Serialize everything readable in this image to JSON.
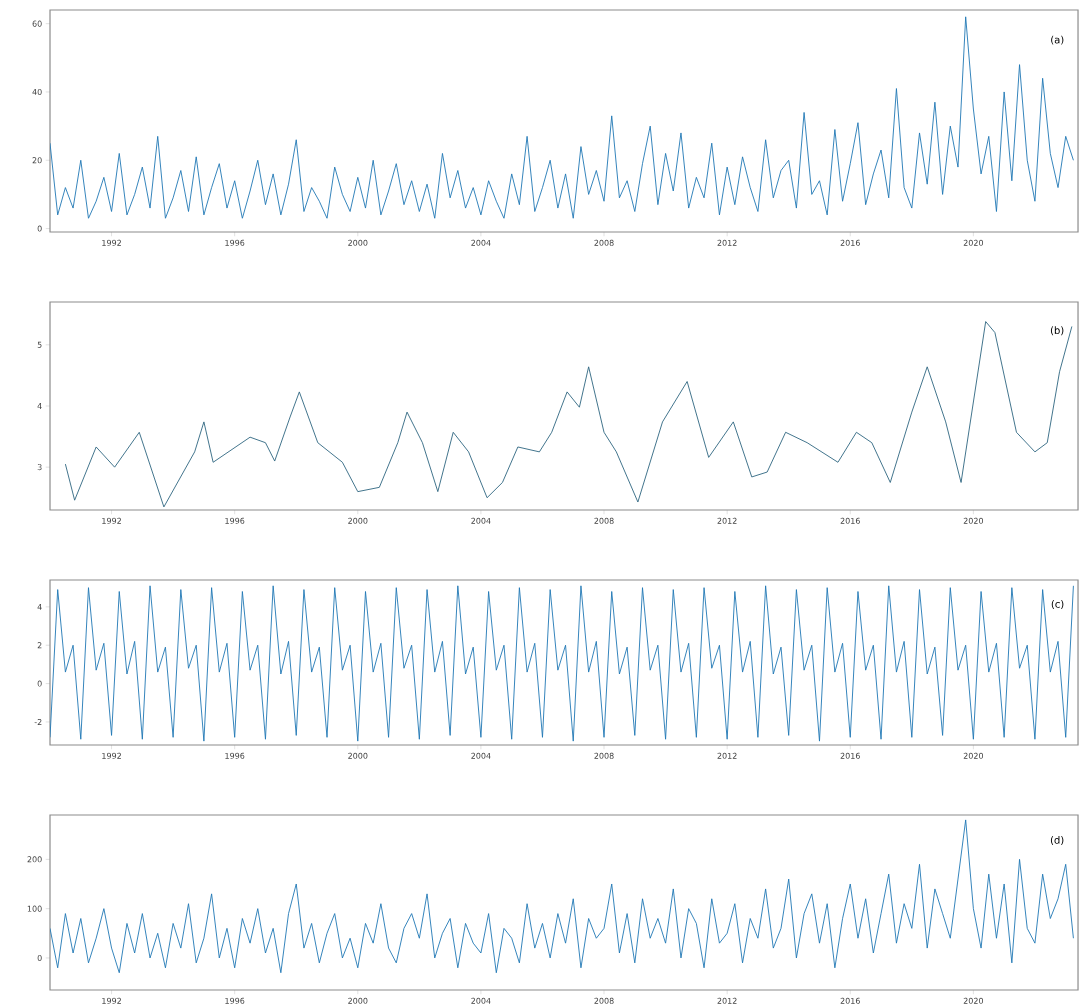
{
  "chart_data": [
    {
      "type": "line",
      "color": "#1f77b4",
      "marker": "none",
      "annotations": [
        "(a)"
      ],
      "xlim": [
        1990,
        2023.4
      ],
      "ylim": [
        -1,
        64
      ],
      "xticks": [
        1992,
        1996,
        2000,
        2004,
        2008,
        2012,
        2016,
        2020
      ],
      "yticks": [
        0,
        20,
        40,
        60
      ],
      "x": [
        1990,
        1990.25,
        1990.5,
        1990.75,
        1991,
        1991.25,
        1991.5,
        1991.75,
        1992,
        1992.25,
        1992.5,
        1992.75,
        1993,
        1993.25,
        1993.5,
        1993.75,
        1994,
        1994.25,
        1994.5,
        1994.75,
        1995,
        1995.25,
        1995.5,
        1995.75,
        1996,
        1996.25,
        1996.5,
        1996.75,
        1997,
        1997.25,
        1997.5,
        1997.75,
        1998,
        1998.25,
        1998.5,
        1998.75,
        1999,
        1999.25,
        1999.5,
        1999.75,
        2000,
        2000.25,
        2000.5,
        2000.75,
        2001,
        2001.25,
        2001.5,
        2001.75,
        2002,
        2002.25,
        2002.5,
        2002.75,
        2003,
        2003.25,
        2003.5,
        2003.75,
        2004,
        2004.25,
        2004.5,
        2004.75,
        2005,
        2005.25,
        2005.5,
        2005.75,
        2006,
        2006.25,
        2006.5,
        2006.75,
        2007,
        2007.25,
        2007.5,
        2007.75,
        2008,
        2008.25,
        2008.5,
        2008.75,
        2009,
        2009.25,
        2009.5,
        2009.75,
        2010,
        2010.25,
        2010.5,
        2010.75,
        2011,
        2011.25,
        2011.5,
        2011.75,
        2012,
        2012.25,
        2012.5,
        2012.75,
        2013,
        2013.25,
        2013.5,
        2013.75,
        2014,
        2014.25,
        2014.5,
        2014.75,
        2015,
        2015.25,
        2015.5,
        2015.75,
        2016,
        2016.25,
        2016.5,
        2016.75,
        2017,
        2017.25,
        2017.5,
        2017.75,
        2018,
        2018.25,
        2018.5,
        2018.75,
        2019,
        2019.25,
        2019.5,
        2019.75,
        2020,
        2020.25,
        2020.5,
        2020.75,
        2021,
        2021.25,
        2021.5,
        2021.75,
        2022,
        2022.25,
        2022.5,
        2022.75,
        2023,
        2023.25
      ],
      "values": [
        25,
        4,
        12,
        6,
        20,
        3,
        8,
        15,
        5,
        22,
        4,
        10,
        18,
        6,
        27,
        3,
        9,
        17,
        5,
        21,
        4,
        12,
        19,
        6,
        14,
        3,
        11,
        20,
        7,
        16,
        4,
        13,
        26,
        5,
        12,
        8,
        3,
        18,
        10,
        5,
        15,
        6,
        20,
        4,
        11,
        19,
        7,
        14,
        5,
        13,
        3,
        22,
        9,
        17,
        6,
        12,
        4,
        14,
        8,
        3,
        16,
        7,
        27,
        5,
        12,
        20,
        6,
        16,
        3,
        24,
        10,
        17,
        8,
        33,
        9,
        14,
        5,
        19,
        30,
        7,
        22,
        11,
        28,
        6,
        15,
        9,
        25,
        4,
        18,
        7,
        21,
        12,
        5,
        26,
        9,
        17,
        20,
        6,
        34,
        10,
        14,
        4,
        29,
        8,
        19,
        31,
        7,
        16,
        23,
        9,
        41,
        12,
        6,
        28,
        13,
        37,
        10,
        30,
        18,
        62,
        35,
        16,
        27,
        5,
        40,
        14,
        48,
        20,
        8,
        44,
        22,
        12,
        27,
        20
      ]
    },
    {
      "type": "line",
      "color": "#2e6580",
      "marker": "none",
      "annotations": [
        "(b)"
      ],
      "xlim": [
        1990,
        2023.4
      ],
      "ylim": [
        2.3,
        5.7
      ],
      "xticks": [
        1992,
        1996,
        2000,
        2004,
        2008,
        2012,
        2016,
        2020
      ],
      "yticks": [
        3,
        4,
        5
      ],
      "x": [
        1990.5,
        1990.8,
        1991.5,
        1992.1,
        1992.9,
        1993.7,
        1994.7,
        1995,
        1995.3,
        1996.5,
        1997,
        1997.3,
        1997.8,
        1998.1,
        1998.7,
        1999.5,
        2000,
        2000.7,
        2001.3,
        2001.6,
        2002.1,
        2002.6,
        2003.1,
        2003.6,
        2004.2,
        2004.7,
        2005.2,
        2005.9,
        2006.3,
        2006.8,
        2007.2,
        2007.5,
        2008,
        2008.4,
        2009.1,
        2009.9,
        2010.7,
        2011.4,
        2012.2,
        2012.8,
        2013.3,
        2013.9,
        2014.6,
        2015.6,
        2016.2,
        2016.7,
        2017.3,
        2018,
        2018.5,
        2019.1,
        2019.6,
        2020.4,
        2020.7,
        2021.4,
        2022,
        2022.4,
        2022.8,
        2023.2
      ],
      "values": [
        3.05,
        2.46,
        3.33,
        3.0,
        3.57,
        2.35,
        3.25,
        3.74,
        3.08,
        3.49,
        3.4,
        3.1,
        3.82,
        4.23,
        3.4,
        3.08,
        2.6,
        2.67,
        3.4,
        3.9,
        3.4,
        2.6,
        3.57,
        3.25,
        2.5,
        2.75,
        3.33,
        3.25,
        3.57,
        4.23,
        3.98,
        4.64,
        3.57,
        3.25,
        2.43,
        3.74,
        4.4,
        3.16,
        3.74,
        2.84,
        2.92,
        3.57,
        3.4,
        3.08,
        3.57,
        3.4,
        2.75,
        3.9,
        4.64,
        3.74,
        2.75,
        5.38,
        5.2,
        3.57,
        3.25,
        3.4,
        4.56,
        5.3
      ]
    },
    {
      "type": "line",
      "color": "#1f77b4",
      "marker": "none",
      "annotations": [
        "(c)"
      ],
      "xlim": [
        1990,
        2023.4
      ],
      "ylim": [
        -3.2,
        5.4
      ],
      "xticks": [
        1992,
        1996,
        2000,
        2004,
        2008,
        2012,
        2016,
        2020
      ],
      "yticks": [
        -2,
        0,
        2,
        4
      ],
      "x": [
        1990,
        1990.25,
        1990.5,
        1990.75,
        1991,
        1991.25,
        1991.5,
        1991.75,
        1992,
        1992.25,
        1992.5,
        1992.75,
        1993,
        1993.25,
        1993.5,
        1993.75,
        1994,
        1994.25,
        1994.5,
        1994.75,
        1995,
        1995.25,
        1995.5,
        1995.75,
        1996,
        1996.25,
        1996.5,
        1996.75,
        1997,
        1997.25,
        1997.5,
        1997.75,
        1998,
        1998.25,
        1998.5,
        1998.75,
        1999,
        1999.25,
        1999.5,
        1999.75,
        2000,
        2000.25,
        2000.5,
        2000.75,
        2001,
        2001.25,
        2001.5,
        2001.75,
        2002,
        2002.25,
        2002.5,
        2002.75,
        2003,
        2003.25,
        2003.5,
        2003.75,
        2004,
        2004.25,
        2004.5,
        2004.75,
        2005,
        2005.25,
        2005.5,
        2005.75,
        2006,
        2006.25,
        2006.5,
        2006.75,
        2007,
        2007.25,
        2007.5,
        2007.75,
        2008,
        2008.25,
        2008.5,
        2008.75,
        2009,
        2009.25,
        2009.5,
        2009.75,
        2010,
        2010.25,
        2010.5,
        2010.75,
        2011,
        2011.25,
        2011.5,
        2011.75,
        2012,
        2012.25,
        2012.5,
        2012.75,
        2013,
        2013.25,
        2013.5,
        2013.75,
        2014,
        2014.25,
        2014.5,
        2014.75,
        2015,
        2015.25,
        2015.5,
        2015.75,
        2016,
        2016.25,
        2016.5,
        2016.75,
        2017,
        2017.25,
        2017.5,
        2017.75,
        2018,
        2018.25,
        2018.5,
        2018.75,
        2019,
        2019.25,
        2019.5,
        2019.75,
        2020,
        2020.25,
        2020.5,
        2020.75,
        2021,
        2021.25,
        2021.5,
        2021.75,
        2022,
        2022.25,
        2022.5,
        2022.75,
        2023,
        2023.25
      ],
      "values": [
        -2.8,
        4.9,
        0.6,
        2.0,
        -2.9,
        5.0,
        0.7,
        2.1,
        -2.7,
        4.8,
        0.5,
        2.2,
        -2.9,
        5.1,
        0.6,
        1.9,
        -2.8,
        4.9,
        0.8,
        2.0,
        -3.0,
        5.0,
        0.6,
        2.1,
        -2.8,
        4.8,
        0.7,
        2.0,
        -2.9,
        5.1,
        0.5,
        2.2,
        -2.7,
        4.9,
        0.6,
        1.9,
        -2.8,
        5.0,
        0.7,
        2.0,
        -3.0,
        4.8,
        0.6,
        2.1,
        -2.8,
        5.0,
        0.8,
        2.0,
        -2.9,
        4.9,
        0.6,
        2.2,
        -2.7,
        5.1,
        0.5,
        1.9,
        -2.8,
        4.8,
        0.7,
        2.0,
        -2.9,
        5.0,
        0.6,
        2.1,
        -2.8,
        4.9,
        0.7,
        2.0,
        -3.0,
        5.1,
        0.6,
        2.2,
        -2.8,
        4.8,
        0.5,
        1.9,
        -2.7,
        5.0,
        0.7,
        2.0,
        -2.9,
        4.9,
        0.6,
        2.1,
        -2.8,
        5.0,
        0.8,
        2.0,
        -2.9,
        4.8,
        0.6,
        2.2,
        -2.8,
        5.1,
        0.5,
        1.9,
        -2.7,
        4.9,
        0.7,
        2.0,
        -3.0,
        5.0,
        0.6,
        2.1,
        -2.8,
        4.8,
        0.7,
        2.0,
        -2.9,
        5.1,
        0.6,
        2.2,
        -2.8,
        4.9,
        0.5,
        1.9,
        -2.7,
        5.0,
        0.7,
        2.0,
        -2.9,
        4.8,
        0.6,
        2.1,
        -2.8,
        5.0,
        0.8,
        2.0,
        -2.9,
        4.9,
        0.6,
        2.2,
        -2.8,
        5.1
      ]
    },
    {
      "type": "line",
      "color": "#1f77b4",
      "marker": "none",
      "annotations": [
        "(d)"
      ],
      "xlim": [
        1990,
        2023.4
      ],
      "ylim": [
        -65,
        290
      ],
      "xticks": [
        1992,
        1996,
        2000,
        2004,
        2008,
        2012,
        2016,
        2020
      ],
      "yticks": [
        0,
        100,
        200
      ],
      "x": [
        1990,
        1990.25,
        1990.5,
        1990.75,
        1991,
        1991.25,
        1991.5,
        1991.75,
        1992,
        1992.25,
        1992.5,
        1992.75,
        1993,
        1993.25,
        1993.5,
        1993.75,
        1994,
        1994.25,
        1994.5,
        1994.75,
        1995,
        1995.25,
        1995.5,
        1995.75,
        1996,
        1996.25,
        1996.5,
        1996.75,
        1997,
        1997.25,
        1997.5,
        1997.75,
        1998,
        1998.25,
        1998.5,
        1998.75,
        1999,
        1999.25,
        1999.5,
        1999.75,
        2000,
        2000.25,
        2000.5,
        2000.75,
        2001,
        2001.25,
        2001.5,
        2001.75,
        2002,
        2002.25,
        2002.5,
        2002.75,
        2003,
        2003.25,
        2003.5,
        2003.75,
        2004,
        2004.25,
        2004.5,
        2004.75,
        2005,
        2005.25,
        2005.5,
        2005.75,
        2006,
        2006.25,
        2006.5,
        2006.75,
        2007,
        2007.25,
        2007.5,
        2007.75,
        2008,
        2008.25,
        2008.5,
        2008.75,
        2009,
        2009.25,
        2009.5,
        2009.75,
        2010,
        2010.25,
        2010.5,
        2010.75,
        2011,
        2011.25,
        2011.5,
        2011.75,
        2012,
        2012.25,
        2012.5,
        2012.75,
        2013,
        2013.25,
        2013.5,
        2013.75,
        2014,
        2014.25,
        2014.5,
        2014.75,
        2015,
        2015.25,
        2015.5,
        2015.75,
        2016,
        2016.25,
        2016.5,
        2016.75,
        2017,
        2017.25,
        2017.5,
        2017.75,
        2018,
        2018.25,
        2018.5,
        2018.75,
        2019,
        2019.25,
        2019.5,
        2019.75,
        2020,
        2020.25,
        2020.5,
        2020.75,
        2021,
        2021.25,
        2021.5,
        2021.75,
        2022,
        2022.25,
        2022.5,
        2022.75,
        2023,
        2023.25
      ],
      "values": [
        60,
        -20,
        90,
        10,
        80,
        -10,
        40,
        100,
        20,
        -30,
        70,
        10,
        90,
        0,
        50,
        -20,
        70,
        20,
        110,
        -10,
        40,
        130,
        0,
        60,
        -20,
        80,
        30,
        100,
        10,
        60,
        -30,
        90,
        150,
        20,
        70,
        -10,
        50,
        90,
        0,
        40,
        -20,
        70,
        30,
        110,
        20,
        -10,
        60,
        90,
        40,
        130,
        0,
        50,
        80,
        -20,
        70,
        30,
        10,
        90,
        -30,
        60,
        40,
        -10,
        110,
        20,
        70,
        0,
        90,
        30,
        120,
        -20,
        80,
        40,
        60,
        150,
        10,
        90,
        -10,
        120,
        40,
        80,
        30,
        140,
        0,
        100,
        70,
        -20,
        120,
        30,
        50,
        110,
        -10,
        80,
        40,
        140,
        20,
        60,
        160,
        0,
        90,
        130,
        30,
        110,
        -20,
        80,
        150,
        40,
        120,
        10,
        90,
        170,
        30,
        110,
        60,
        190,
        20,
        140,
        90,
        40,
        160,
        280,
        100,
        20,
        170,
        40,
        150,
        -10,
        200,
        60,
        30,
        170,
        80,
        120,
        190,
        40
      ]
    }
  ]
}
